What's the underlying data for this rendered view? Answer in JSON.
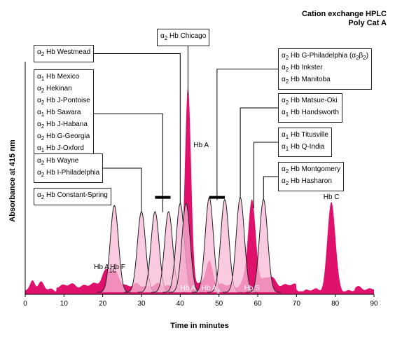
{
  "chart_data": {
    "type": "area",
    "title": "Cation exchange HPLC",
    "subtitle": "Poly Cat A",
    "xlabel": "Time in minutes",
    "ylabel": "Absorbance at 415 nm",
    "xlim": [
      0,
      90
    ],
    "x_ticks": [
      0,
      10,
      20,
      30,
      40,
      50,
      60,
      70,
      80,
      90
    ],
    "grid": false,
    "colors": {
      "fill": "#e0106d",
      "variant_fill": "#f7b8d6",
      "line": "#222222"
    },
    "main_peaks": [
      {
        "label": "Hb A1C",
        "x": 21,
        "height": 0.08,
        "width": 1.2
      },
      {
        "label": "Hb F",
        "x": 23.5,
        "height": 0.05,
        "width": 1.0
      },
      {
        "label": "Hb A",
        "x": 42,
        "height": 0.98,
        "width": 0.8
      },
      {
        "label": "Hb A2",
        "x": 47.5,
        "height": 0.12,
        "width": 0.9
      },
      {
        "label": "Hb S",
        "x": 58.5,
        "height": 0.42,
        "width": 1.0
      },
      {
        "label": "Hb C",
        "x": 79,
        "height": 0.44,
        "width": 1.0
      }
    ],
    "variant_peaks": [
      {
        "x": 23,
        "height": 0.43
      },
      {
        "x": 30,
        "height": 0.4
      },
      {
        "x": 33.5,
        "height": 0.4
      },
      {
        "x": 37,
        "height": 0.4
      },
      {
        "x": 40,
        "height": 0.44
      },
      {
        "x": 41.5,
        "height": 0.44
      },
      {
        "x": 47.5,
        "height": 0.47
      },
      {
        "x": 51.5,
        "height": 0.46
      },
      {
        "x": 55.5,
        "height": 0.47
      },
      {
        "x": 61.5,
        "height": 0.46
      }
    ],
    "ranges": [
      {
        "x1": 33.5,
        "x2": 37.5
      },
      {
        "x1": 47.5,
        "x2": 51.5
      }
    ],
    "annotation_boxes": [
      {
        "lines": [
          "α2 Hb Westmead"
        ],
        "target_x": 40,
        "target_h": 0.44
      },
      {
        "lines": [
          "α2 Hb Chicago"
        ],
        "target_x": 42,
        "target_h": 0.98
      },
      {
        "lines": [
          "α1 Hb Mexico",
          "α2 Hekinan",
          "α2 Hb J-Pontoise",
          "α1 Hb Sawara",
          "α2 Hb J-Habana",
          "α2 Hb G-Georgia",
          "α1 Hb J-Oxford"
        ],
        "target_x": 35.5,
        "target_h": 0.4
      },
      {
        "lines": [
          "α2 Hb Wayne",
          "α2 Hb I-Philadelphia"
        ],
        "target_x": 30,
        "target_h": 0.4
      },
      {
        "lines": [
          "α2 Hb Constant-Spring"
        ],
        "target_x": 23,
        "target_h": 0.43
      },
      {
        "lines": [
          "α2 Hb G-Philadelphia (α2β2)",
          "α2 Hb Inkster",
          "α2 Hb Manitoba"
        ],
        "target_x": 49.5,
        "target_h": 0.46
      },
      {
        "lines": [
          "α2 Hb Matsue-Oki",
          "α1 Hb Handsworth"
        ],
        "target_x": 55.5,
        "target_h": 0.47
      },
      {
        "lines": [
          "α1 Hb Titusville",
          "α1 Hb Q-India"
        ],
        "target_x": 59,
        "target_h": 0.42
      },
      {
        "lines": [
          "α2 Hb Montgomery",
          "α2 Hb Hasharon"
        ],
        "target_x": 61.5,
        "target_h": 0.46
      }
    ]
  }
}
